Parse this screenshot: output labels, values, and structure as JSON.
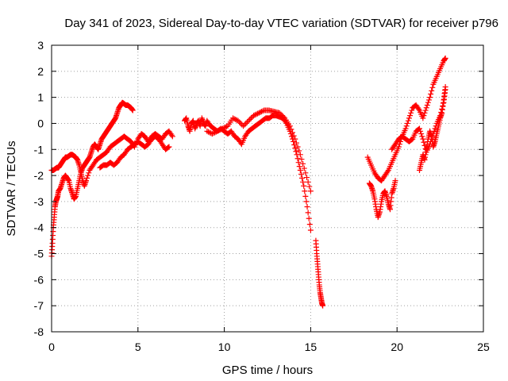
{
  "chart_data": {
    "type": "scatter",
    "title": "Day 341 of 2023, Sidereal Day-to-day VTEC variation (SDTVAR) for receiver p796",
    "xlabel": "GPS time / hours",
    "ylabel": "SDTVAR / TECUs",
    "xlim": [
      0,
      25
    ],
    "ylim": [
      -8,
      3
    ],
    "xticks": [
      0,
      5,
      10,
      15,
      20,
      25
    ],
    "yticks": [
      -8,
      -7,
      -6,
      -5,
      -4,
      -3,
      -2,
      -1,
      0,
      1,
      2,
      3
    ],
    "grid": true,
    "marker": "+",
    "color": "#ff0000",
    "series": [
      {
        "name": "p796",
        "segments": [
          {
            "x": [
              0.0,
              0.05,
              0.1,
              0.15,
              0.2,
              0.25,
              0.3,
              0.35,
              0.4,
              0.5,
              0.6,
              0.7,
              0.8,
              0.9,
              1.0,
              1.1,
              1.2,
              1.3,
              1.4,
              1.5,
              1.6,
              1.7,
              1.8,
              1.9,
              2.0,
              2.1,
              2.2,
              2.3,
              2.4,
              2.5,
              2.6,
              2.7,
              2.8,
              2.9,
              3.0,
              3.1,
              3.2,
              3.3,
              3.4,
              3.5,
              3.6,
              3.7,
              3.8,
              3.9,
              4.0,
              4.1,
              4.2,
              4.3,
              4.4,
              4.5,
              4.6,
              4.7
            ],
            "y": [
              -5.1,
              -4.6,
              -4.0,
              -3.6,
              -3.2,
              -3.0,
              -2.9,
              -2.8,
              -2.6,
              -2.5,
              -2.3,
              -2.1,
              -2.0,
              -2.1,
              -2.2,
              -2.5,
              -2.7,
              -2.9,
              -2.8,
              -2.5,
              -2.2,
              -1.9,
              -1.7,
              -1.6,
              -1.5,
              -1.4,
              -1.3,
              -1.1,
              -0.9,
              -0.8,
              -0.9,
              -1.0,
              -0.8,
              -0.6,
              -0.5,
              -0.4,
              -0.3,
              -0.2,
              -0.1,
              0.0,
              0.1,
              0.2,
              0.4,
              0.6,
              0.7,
              0.8,
              0.75,
              0.7,
              0.7,
              0.65,
              0.6,
              0.5
            ]
          },
          {
            "x": [
              0.0,
              0.1,
              0.2,
              0.3,
              0.4,
              0.5,
              0.6,
              0.7,
              0.8,
              0.9,
              1.0,
              1.1,
              1.2,
              1.3,
              1.4,
              1.5,
              1.6,
              1.7,
              1.8,
              1.9,
              2.0,
              2.2,
              2.4,
              2.6,
              2.8,
              3.0,
              3.2,
              3.4,
              3.6,
              3.8,
              4.0,
              4.2,
              4.4,
              4.6,
              4.8,
              5.0,
              5.2,
              5.4,
              5.6,
              5.8,
              6.0,
              6.2,
              6.4,
              6.6,
              6.8,
              7.0
            ],
            "y": [
              -1.8,
              -1.8,
              -1.75,
              -1.7,
              -1.7,
              -1.6,
              -1.5,
              -1.4,
              -1.3,
              -1.3,
              -1.25,
              -1.2,
              -1.2,
              -1.25,
              -1.3,
              -1.4,
              -1.6,
              -1.9,
              -2.2,
              -2.4,
              -2.2,
              -1.8,
              -1.6,
              -1.4,
              -1.3,
              -1.2,
              -1.1,
              -0.9,
              -0.8,
              -0.7,
              -0.6,
              -0.5,
              -0.6,
              -0.7,
              -0.9,
              -0.6,
              -0.4,
              -0.5,
              -0.7,
              -0.5,
              -0.4,
              -0.5,
              -0.6,
              -0.4,
              -0.3,
              -0.5
            ]
          },
          {
            "x": [
              2.8,
              3.0,
              3.2,
              3.4,
              3.6,
              3.8,
              4.0,
              4.2,
              4.4,
              4.6,
              4.8,
              5.0,
              5.2,
              5.4,
              5.6,
              5.8,
              6.0,
              6.2,
              6.4,
              6.6,
              6.8
            ],
            "y": [
              -1.7,
              -1.6,
              -1.6,
              -1.5,
              -1.6,
              -1.5,
              -1.3,
              -1.2,
              -1.0,
              -0.9,
              -0.8,
              -0.7,
              -0.8,
              -0.9,
              -0.8,
              -0.6,
              -0.5,
              -0.6,
              -0.8,
              -1.0,
              -0.9
            ]
          },
          {
            "x": [
              7.7,
              7.8,
              7.9,
              8.0,
              8.1,
              8.2,
              8.3,
              8.4,
              8.5,
              8.6,
              8.7,
              8.8,
              8.9,
              9.0,
              9.2,
              9.4,
              9.6,
              9.8,
              10.0,
              10.2,
              10.4,
              10.6,
              10.8,
              11.0,
              11.2,
              11.4,
              11.6,
              11.8,
              12.0,
              12.2,
              12.4,
              12.6,
              12.8,
              13.0,
              13.2,
              13.4,
              13.6,
              13.8,
              14.0,
              14.2,
              14.4,
              14.6,
              14.8,
              15.0
            ],
            "y": [
              0.1,
              0.2,
              -0.1,
              -0.3,
              0.0,
              0.1,
              -0.2,
              0.0,
              0.1,
              -0.1,
              0.2,
              0.0,
              -0.1,
              0.1,
              -0.1,
              -0.2,
              -0.3,
              -0.2,
              -0.3,
              -0.4,
              -0.3,
              -0.5,
              -0.6,
              -0.8,
              -0.5,
              -0.3,
              -0.2,
              -0.1,
              0.0,
              0.1,
              0.2,
              0.2,
              0.3,
              0.3,
              0.25,
              0.2,
              0.0,
              -0.3,
              -0.7,
              -1.2,
              -1.8,
              -2.4,
              -3.2,
              -4.1
            ]
          },
          {
            "x": [
              9.0,
              9.3,
              9.6,
              9.9,
              10.2,
              10.5,
              10.8,
              11.1,
              11.4,
              11.7,
              12.0,
              12.3,
              12.6,
              12.9,
              13.2,
              13.5,
              13.8,
              14.1,
              14.4,
              14.7,
              15.0
            ],
            "y": [
              -0.3,
              -0.4,
              -0.3,
              -0.2,
              -0.1,
              0.2,
              0.1,
              -0.1,
              0.1,
              0.3,
              0.4,
              0.5,
              0.5,
              0.45,
              0.4,
              0.2,
              -0.1,
              -0.6,
              -1.2,
              -1.9,
              -2.6
            ]
          },
          {
            "x": [
              15.3,
              15.35,
              15.4,
              15.45,
              15.5,
              15.55,
              15.6,
              15.65,
              15.7
            ],
            "y": [
              -4.5,
              -5.0,
              -5.4,
              -5.8,
              -6.2,
              -6.5,
              -6.7,
              -6.9,
              -7.0
            ]
          },
          {
            "x": [
              18.4,
              18.5,
              18.6,
              18.7,
              18.8,
              18.9,
              19.0,
              19.1,
              19.2,
              19.3,
              19.4,
              19.5,
              19.6,
              19.7,
              19.8,
              19.9
            ],
            "y": [
              -2.3,
              -2.4,
              -2.6,
              -2.9,
              -3.3,
              -3.6,
              -3.4,
              -3.0,
              -2.7,
              -2.6,
              -2.8,
              -3.1,
              -3.3,
              -2.7,
              -2.5,
              -2.2
            ]
          },
          {
            "x": [
              18.3,
              18.5,
              18.7,
              18.9,
              19.1,
              19.3,
              19.5,
              19.7,
              19.9,
              20.1,
              20.3,
              20.5,
              20.7,
              20.9,
              21.1,
              21.3,
              21.5,
              21.7,
              21.9,
              22.1,
              22.3,
              22.5,
              22.7,
              22.8
            ],
            "y": [
              -1.3,
              -1.6,
              -1.9,
              -2.1,
              -2.2,
              -2.0,
              -1.8,
              -1.5,
              -1.2,
              -0.9,
              -0.5,
              -0.2,
              0.2,
              0.6,
              0.7,
              0.5,
              0.2,
              0.6,
              1.0,
              1.5,
              1.8,
              2.1,
              2.4,
              2.5
            ]
          },
          {
            "x": [
              19.7,
              19.9,
              20.1,
              20.3,
              20.5,
              20.7,
              20.9,
              21.1,
              21.3,
              21.5,
              21.7,
              21.9,
              22.1,
              22.3,
              22.5,
              22.7,
              22.8
            ],
            "y": [
              -1.0,
              -0.8,
              -0.6,
              -0.5,
              -0.6,
              -0.7,
              -0.6,
              -0.3,
              -0.2,
              -0.6,
              -1.1,
              -0.8,
              -0.4,
              0.0,
              0.3,
              0.8,
              1.3
            ]
          },
          {
            "x": [
              21.3,
              21.4,
              21.5,
              21.6,
              21.7,
              21.8,
              21.9,
              22.0,
              22.1,
              22.2,
              22.3,
              22.4,
              22.5,
              22.6,
              22.7,
              22.8
            ],
            "y": [
              -1.8,
              -1.5,
              -1.2,
              -1.4,
              -1.0,
              -0.6,
              -0.3,
              -0.5,
              -0.9,
              -0.7,
              -0.4,
              -0.1,
              0.2,
              0.4,
              0.9,
              1.4
            ]
          }
        ]
      }
    ]
  }
}
